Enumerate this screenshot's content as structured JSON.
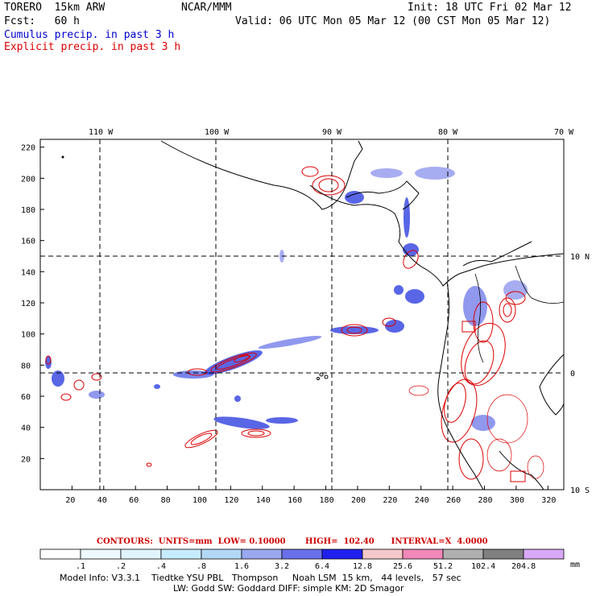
{
  "header": {
    "model": "TORERO  15km ARW",
    "org": "NCAR/MMM",
    "init": "Init: 18 UTC Fri 02 Mar 12",
    "fcst": "Fcst:   60 h",
    "valid": "Valid: 06 UTC Mon 05 Mar 12 (00 CST Mon 05 Mar 12)",
    "legend_cumulus": "Cumulus precip. in past 3 h",
    "legend_explicit": "Explicit precip. in past 3 h"
  },
  "map": {
    "top_lon_labels": [
      "110 W",
      "100 W",
      "90 W",
      "80 W",
      "70 W"
    ],
    "right_lat_labels": [
      "10 N",
      "0",
      "10 S"
    ],
    "x_ticks": [
      "20",
      "40",
      "60",
      "80",
      "100",
      "120",
      "140",
      "160",
      "180",
      "200",
      "220",
      "240",
      "260",
      "280",
      "300",
      "320"
    ],
    "y_ticks": [
      "20",
      "40",
      "60",
      "80",
      "100",
      "120",
      "140",
      "160",
      "180",
      "200",
      "220"
    ],
    "colors": {
      "cumulus": "#2233dd",
      "explicit": "#dd0000",
      "coast": "#000000"
    }
  },
  "contours": {
    "label": "CONTOURS:  UNITS=mm  LOW= 0.10000",
    "high": "HIGH=  102.40",
    "interval": "INTERVAL=X  4.0000"
  },
  "colorbar": {
    "labels": [
      ".1",
      ".2",
      ".4",
      ".8",
      "1.6",
      "3.2",
      "6.4",
      "12.8",
      "25.6",
      "51.2",
      "102.4",
      "204.8"
    ],
    "unit": "mm",
    "colors": [
      "#ffffff",
      "#eef8ff",
      "#e0f4ff",
      "#c8ecff",
      "#b3d8f5",
      "#9aa8f0",
      "#6a70ea",
      "#2020ee",
      "#f4c8c8",
      "#f088b8",
      "#b0b0b0",
      "#808080",
      "#d8a8f8"
    ]
  },
  "footer": {
    "line1": "Model Info: V3.3.1    Tiedtke YSU PBL   Thompson     Noah LSM  15 km,   44 levels,   57 sec",
    "line2": "LW: Godd SW: Goddard DIFF: simple KM: 2D Smagor"
  }
}
